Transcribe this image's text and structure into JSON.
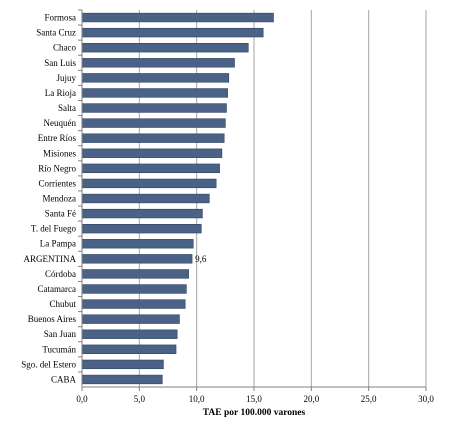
{
  "chart_data": {
    "type": "bar",
    "orientation": "horizontal",
    "categories": [
      "Formosa",
      "Santa Cruz",
      "Chaco",
      "San Luis",
      "Jujuy",
      "La Rioja",
      "Salta",
      "Neuquén",
      "Entre Ríos",
      "Misiones",
      "Río Negro",
      "Corrientes",
      "Mendoza",
      "Santa Fé",
      "T. del Fuego",
      "La Pampa",
      "ARGENTINA",
      "Córdoba",
      "Catamarca",
      "Chubut",
      "Buenos Aires",
      "San Juan",
      "Tucumán",
      "Sgo. del Estero",
      "CABA"
    ],
    "values": [
      16.7,
      15.8,
      14.5,
      13.3,
      12.8,
      12.7,
      12.6,
      12.5,
      12.4,
      12.2,
      12.0,
      11.7,
      11.1,
      10.5,
      10.4,
      9.7,
      9.6,
      9.3,
      9.1,
      9.0,
      8.5,
      8.3,
      8.2,
      7.1,
      7.0
    ],
    "data_labels": [
      {
        "category": "ARGENTINA",
        "text": "9,6"
      }
    ],
    "title": "",
    "xlabel": "TAE por 100.000 varones",
    "ylabel": "",
    "xlim": [
      0,
      30
    ],
    "xticks": [
      "0,0",
      "5,0",
      "10,0",
      "15,0",
      "20,0",
      "25,0",
      "30,0"
    ],
    "grid": "vertical",
    "legend": "none",
    "bar_color": "#4a6285",
    "bar_edge_color": "#2f4463",
    "grid_color": "#a6a6a6"
  }
}
